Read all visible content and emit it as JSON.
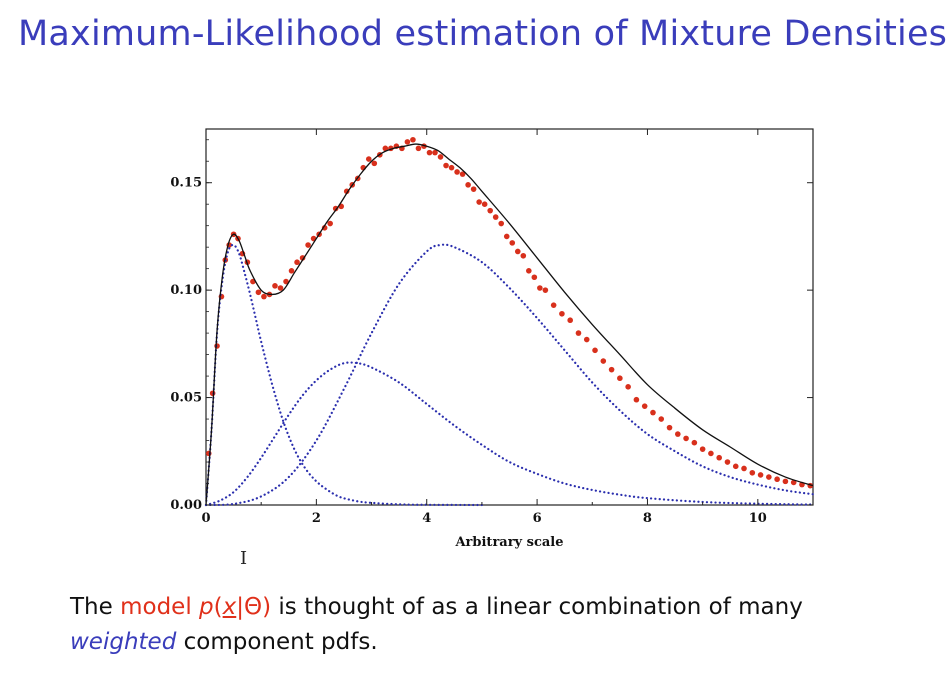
{
  "slide": {
    "title": "Maximum-Likelihood estimation of Mixture Densities"
  },
  "caption": {
    "the": "The",
    "model_word": "model",
    "p": "p",
    "open_paren": "(",
    "x": "x",
    "bar": "|",
    "theta": "Θ",
    "close_paren": ")",
    "rest_line1": "is thought of as a linear combination of many",
    "weighted": "weighted",
    "rest_line2": "component pdfs."
  },
  "cursor_glyph": "I",
  "colors": {
    "title": "#3a3dbb",
    "data_points": "#d8301c",
    "component_curves": "#2b2fae",
    "mixture_curve": "#111111",
    "highlight_red": "#e0301a"
  },
  "chart_data": {
    "type": "line",
    "title": "",
    "xlabel": "Arbitrary scale",
    "ylabel": "",
    "xlim": [
      0,
      11
    ],
    "ylim": [
      0,
      0.175
    ],
    "xticks": [
      0,
      2,
      4,
      6,
      8,
      10
    ],
    "xtick_labels": [
      "0",
      "2",
      "4",
      "6",
      "8",
      "10"
    ],
    "yticks": [
      0.0,
      0.05,
      0.1,
      0.15
    ],
    "ytick_labels": [
      "0.00",
      "0.05",
      "0.10",
      "0.15"
    ],
    "series": [
      {
        "name": "component-1",
        "style": "dotted",
        "x": [
          0,
          0.1,
          0.2,
          0.3,
          0.4,
          0.5,
          0.6,
          0.7,
          0.8,
          0.9,
          1.0,
          1.2,
          1.4,
          1.6,
          1.8,
          2.0,
          2.2,
          2.4,
          2.6,
          2.8,
          3.0,
          3.5,
          4.0,
          5.0
        ],
        "y": [
          0,
          0.035,
          0.08,
          0.105,
          0.118,
          0.121,
          0.117,
          0.108,
          0.098,
          0.087,
          0.076,
          0.056,
          0.039,
          0.026,
          0.017,
          0.011,
          0.007,
          0.004,
          0.0025,
          0.0015,
          0.001,
          0.0003,
          0.0001,
          0
        ]
      },
      {
        "name": "component-2",
        "style": "dotted",
        "x": [
          0,
          0.25,
          0.5,
          0.75,
          1.0,
          1.25,
          1.5,
          1.75,
          2.0,
          2.25,
          2.5,
          2.75,
          3.0,
          3.5,
          4.0,
          4.5,
          5.0,
          5.5,
          6.0,
          6.5,
          7.0,
          7.5,
          8.0,
          9.0,
          10.0,
          11.0
        ],
        "y": [
          0,
          0.002,
          0.006,
          0.013,
          0.022,
          0.032,
          0.042,
          0.051,
          0.058,
          0.063,
          0.066,
          0.066,
          0.064,
          0.057,
          0.047,
          0.037,
          0.028,
          0.02,
          0.0145,
          0.01,
          0.007,
          0.0048,
          0.0032,
          0.0014,
          0.0006,
          0.0002
        ]
      },
      {
        "name": "component-3",
        "style": "dotted",
        "x": [
          0,
          0.5,
          1.0,
          1.5,
          2.0,
          2.5,
          3.0,
          3.5,
          4.0,
          4.25,
          4.5,
          5.0,
          5.5,
          6.0,
          6.5,
          7.0,
          7.5,
          8.0,
          8.5,
          9.0,
          9.5,
          10.0,
          10.5,
          11.0
        ],
        "y": [
          0,
          0.0005,
          0.004,
          0.013,
          0.03,
          0.054,
          0.08,
          0.103,
          0.118,
          0.121,
          0.12,
          0.113,
          0.101,
          0.087,
          0.072,
          0.057,
          0.044,
          0.033,
          0.025,
          0.018,
          0.013,
          0.0095,
          0.0068,
          0.005
        ]
      },
      {
        "name": "mixture",
        "style": "solid",
        "x": [
          0,
          0.1,
          0.2,
          0.3,
          0.4,
          0.5,
          0.6,
          0.7,
          0.8,
          1.0,
          1.2,
          1.4,
          1.6,
          1.8,
          2.0,
          2.2,
          2.4,
          2.6,
          2.8,
          3.0,
          3.2,
          3.4,
          3.6,
          3.8,
          4.0,
          4.2,
          4.4,
          4.6,
          4.8,
          5.0,
          5.5,
          6.0,
          6.5,
          7.0,
          7.5,
          8.0,
          8.5,
          9.0,
          9.5,
          10.0,
          10.5,
          11.0
        ],
        "y": [
          0,
          0.035,
          0.081,
          0.107,
          0.121,
          0.126,
          0.123,
          0.116,
          0.109,
          0.1,
          0.098,
          0.1,
          0.108,
          0.116,
          0.124,
          0.132,
          0.139,
          0.147,
          0.154,
          0.16,
          0.164,
          0.166,
          0.167,
          0.168,
          0.167,
          0.165,
          0.161,
          0.157,
          0.152,
          0.146,
          0.131,
          0.115,
          0.099,
          0.084,
          0.07,
          0.056,
          0.045,
          0.035,
          0.027,
          0.019,
          0.013,
          0.009
        ]
      },
      {
        "name": "data-points",
        "style": "markers",
        "x": [
          0.05,
          0.12,
          0.2,
          0.28,
          0.35,
          0.42,
          0.5,
          0.58,
          0.66,
          0.75,
          0.85,
          0.95,
          1.05,
          1.15,
          1.25,
          1.35,
          1.45,
          1.55,
          1.65,
          1.75,
          1.85,
          1.95,
          2.05,
          2.15,
          2.25,
          2.35,
          2.45,
          2.55,
          2.65,
          2.75,
          2.85,
          2.95,
          3.05,
          3.15,
          3.25,
          3.35,
          3.45,
          3.55,
          3.65,
          3.75,
          3.85,
          3.95,
          4.05,
          4.15,
          4.25,
          4.35,
          4.45,
          4.55,
          4.65,
          4.75,
          4.85,
          4.95,
          5.05,
          5.15,
          5.25,
          5.35,
          5.45,
          5.55,
          5.65,
          5.75,
          5.85,
          5.95,
          6.05,
          6.15,
          6.3,
          6.45,
          6.6,
          6.75,
          6.9,
          7.05,
          7.2,
          7.35,
          7.5,
          7.65,
          7.8,
          7.95,
          8.1,
          8.25,
          8.4,
          8.55,
          8.7,
          8.85,
          9.0,
          9.15,
          9.3,
          9.45,
          9.6,
          9.75,
          9.9,
          10.05,
          10.2,
          10.35,
          10.5,
          10.65,
          10.8,
          10.95
        ],
        "y": [
          0.024,
          0.052,
          0.074,
          0.097,
          0.114,
          0.121,
          0.126,
          0.124,
          0.117,
          0.113,
          0.104,
          0.099,
          0.097,
          0.098,
          0.102,
          0.101,
          0.104,
          0.109,
          0.113,
          0.115,
          0.121,
          0.124,
          0.126,
          0.129,
          0.131,
          0.138,
          0.139,
          0.146,
          0.149,
          0.152,
          0.157,
          0.161,
          0.159,
          0.163,
          0.166,
          0.166,
          0.167,
          0.166,
          0.169,
          0.17,
          0.166,
          0.167,
          0.164,
          0.164,
          0.162,
          0.158,
          0.157,
          0.155,
          0.154,
          0.149,
          0.147,
          0.141,
          0.14,
          0.137,
          0.134,
          0.131,
          0.125,
          0.122,
          0.118,
          0.116,
          0.109,
          0.106,
          0.101,
          0.1,
          0.093,
          0.089,
          0.086,
          0.08,
          0.077,
          0.072,
          0.067,
          0.063,
          0.059,
          0.055,
          0.049,
          0.046,
          0.043,
          0.04,
          0.036,
          0.033,
          0.031,
          0.029,
          0.026,
          0.024,
          0.022,
          0.02,
          0.018,
          0.017,
          0.015,
          0.014,
          0.013,
          0.012,
          0.011,
          0.0105,
          0.0095,
          0.009
        ]
      }
    ]
  }
}
